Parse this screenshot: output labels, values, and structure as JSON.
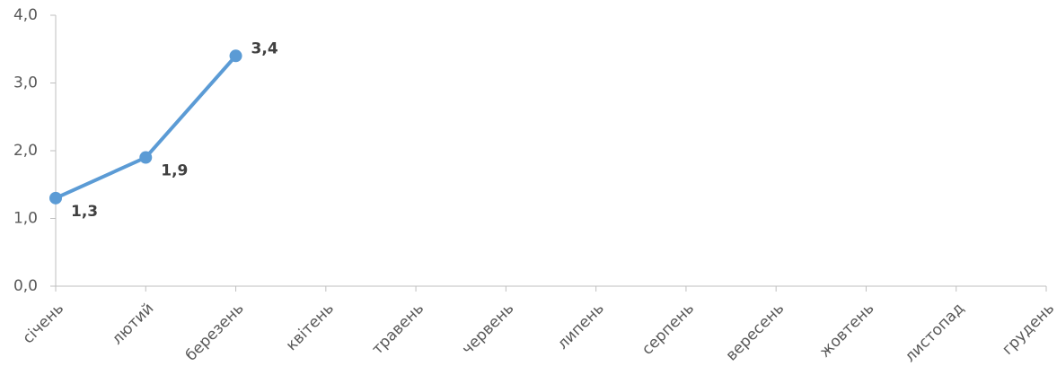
{
  "chart_data": {
    "type": "line",
    "categories": [
      "січень",
      "лютий",
      "березень",
      "квітень",
      "травень",
      "червень",
      "липень",
      "серпень",
      "вересень",
      "жовтень",
      "листопад",
      "грудень"
    ],
    "values": [
      1.3,
      1.9,
      3.4,
      null,
      null,
      null,
      null,
      null,
      null,
      null,
      null,
      null
    ],
    "value_labels": [
      "1,3",
      "1,9",
      "3,4",
      null,
      null,
      null,
      null,
      null,
      null,
      null,
      null,
      null
    ],
    "color": "#5b9bd5",
    "ylim": [
      0,
      4
    ],
    "yticks": [
      {
        "value": 0,
        "label": "0,0"
      },
      {
        "value": 1,
        "label": "1,0"
      },
      {
        "value": 2,
        "label": "2,0"
      },
      {
        "value": 3,
        "label": "3,0"
      },
      {
        "value": 4,
        "label": "4,0"
      }
    ],
    "grid": false
  }
}
